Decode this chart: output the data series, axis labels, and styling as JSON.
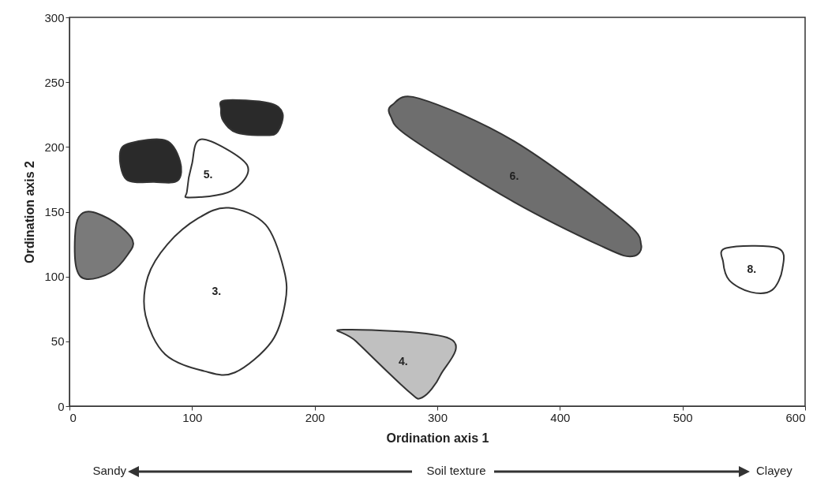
{
  "chart_data": {
    "type": "area",
    "xlabel": "Ordination axis 1",
    "ylabel": "Ordination axis 2",
    "xlim": [
      0,
      600
    ],
    "xticks": [
      0,
      100,
      200,
      300,
      400,
      500,
      600
    ],
    "ylim": [
      0,
      300
    ],
    "yticks": [
      0,
      50,
      100,
      150,
      200,
      250,
      300
    ],
    "grid": false,
    "series": [
      {
        "color": "#7a7a7a",
        "x": [
          17.4,
          36.7,
          51.5,
          47.6,
          33.5,
          14.2,
          5.8,
          4.5,
          7.7
        ],
        "values": [
          150,
          142,
          128,
          117,
          103,
          98,
          106,
          131,
          146
        ]
      },
      {
        "color": "#2a2a2a",
        "x": [
          49.6,
          78.6,
          90.2,
          88.3,
          69,
          46.4,
          41.2
        ],
        "values": [
          203,
          205,
          189,
          174,
          173,
          175,
          195
        ]
      },
      {
        "name": "3.",
        "color": "#ffffff",
        "x": [
          130,
          160,
          175,
          176,
          165,
          135,
          110,
          78,
          62,
          64,
          80,
          105
        ],
        "values": [
          153,
          140,
          105,
          80,
          50,
          26,
          27,
          40,
          70,
          100,
          125,
          145
        ]
      },
      {
        "name": "4.",
        "color": "#c0c0c0",
        "x": [
          223.4,
          310.4,
          302.6,
          287.8,
          275.6,
          233.7
        ],
        "values": [
          59,
          52,
          24,
          6.7,
          12.2,
          50
        ]
      },
      {
        "name": "5.",
        "color": "#ffffff",
        "x": [
          108.1,
          144.9,
          131.9,
          97.8,
          95.9,
          99.7
        ],
        "values": [
          206,
          186,
          166,
          161,
          166,
          186
        ]
      },
      {
        "name": "6.",
        "color": "#6e6e6e",
        "x": [
          263.4,
          285.3,
          362.5,
          451.4,
          466.2,
          459.1,
          436.6,
          362.5,
          278.2,
          262.1
        ],
        "values": [
          232.5,
          237.4,
          204.5,
          143.6,
          124.8,
          115.6,
          122.3,
          157.6,
          206.9,
          223.4
        ]
      },
      {
        "color": "#2a2a2a",
        "x": [
          126.8,
          162.2,
          173.8,
          170,
          161,
          136.5,
          125.5,
          123.6
        ],
        "values": [
          236,
          234,
          226,
          212,
          209,
          211,
          220,
          229
        ]
      },
      {
        "name": "8.",
        "color": "#ffffff",
        "x": [
          535.7,
          577.6,
          581.5,
          573,
          555.7,
          538.3,
          533.2
        ],
        "values": [
          122,
          122,
          106,
          89.5,
          88,
          97,
          111
        ]
      }
    ],
    "annotations": [
      "Sandy",
      "Soil texture",
      "Clayey"
    ]
  }
}
